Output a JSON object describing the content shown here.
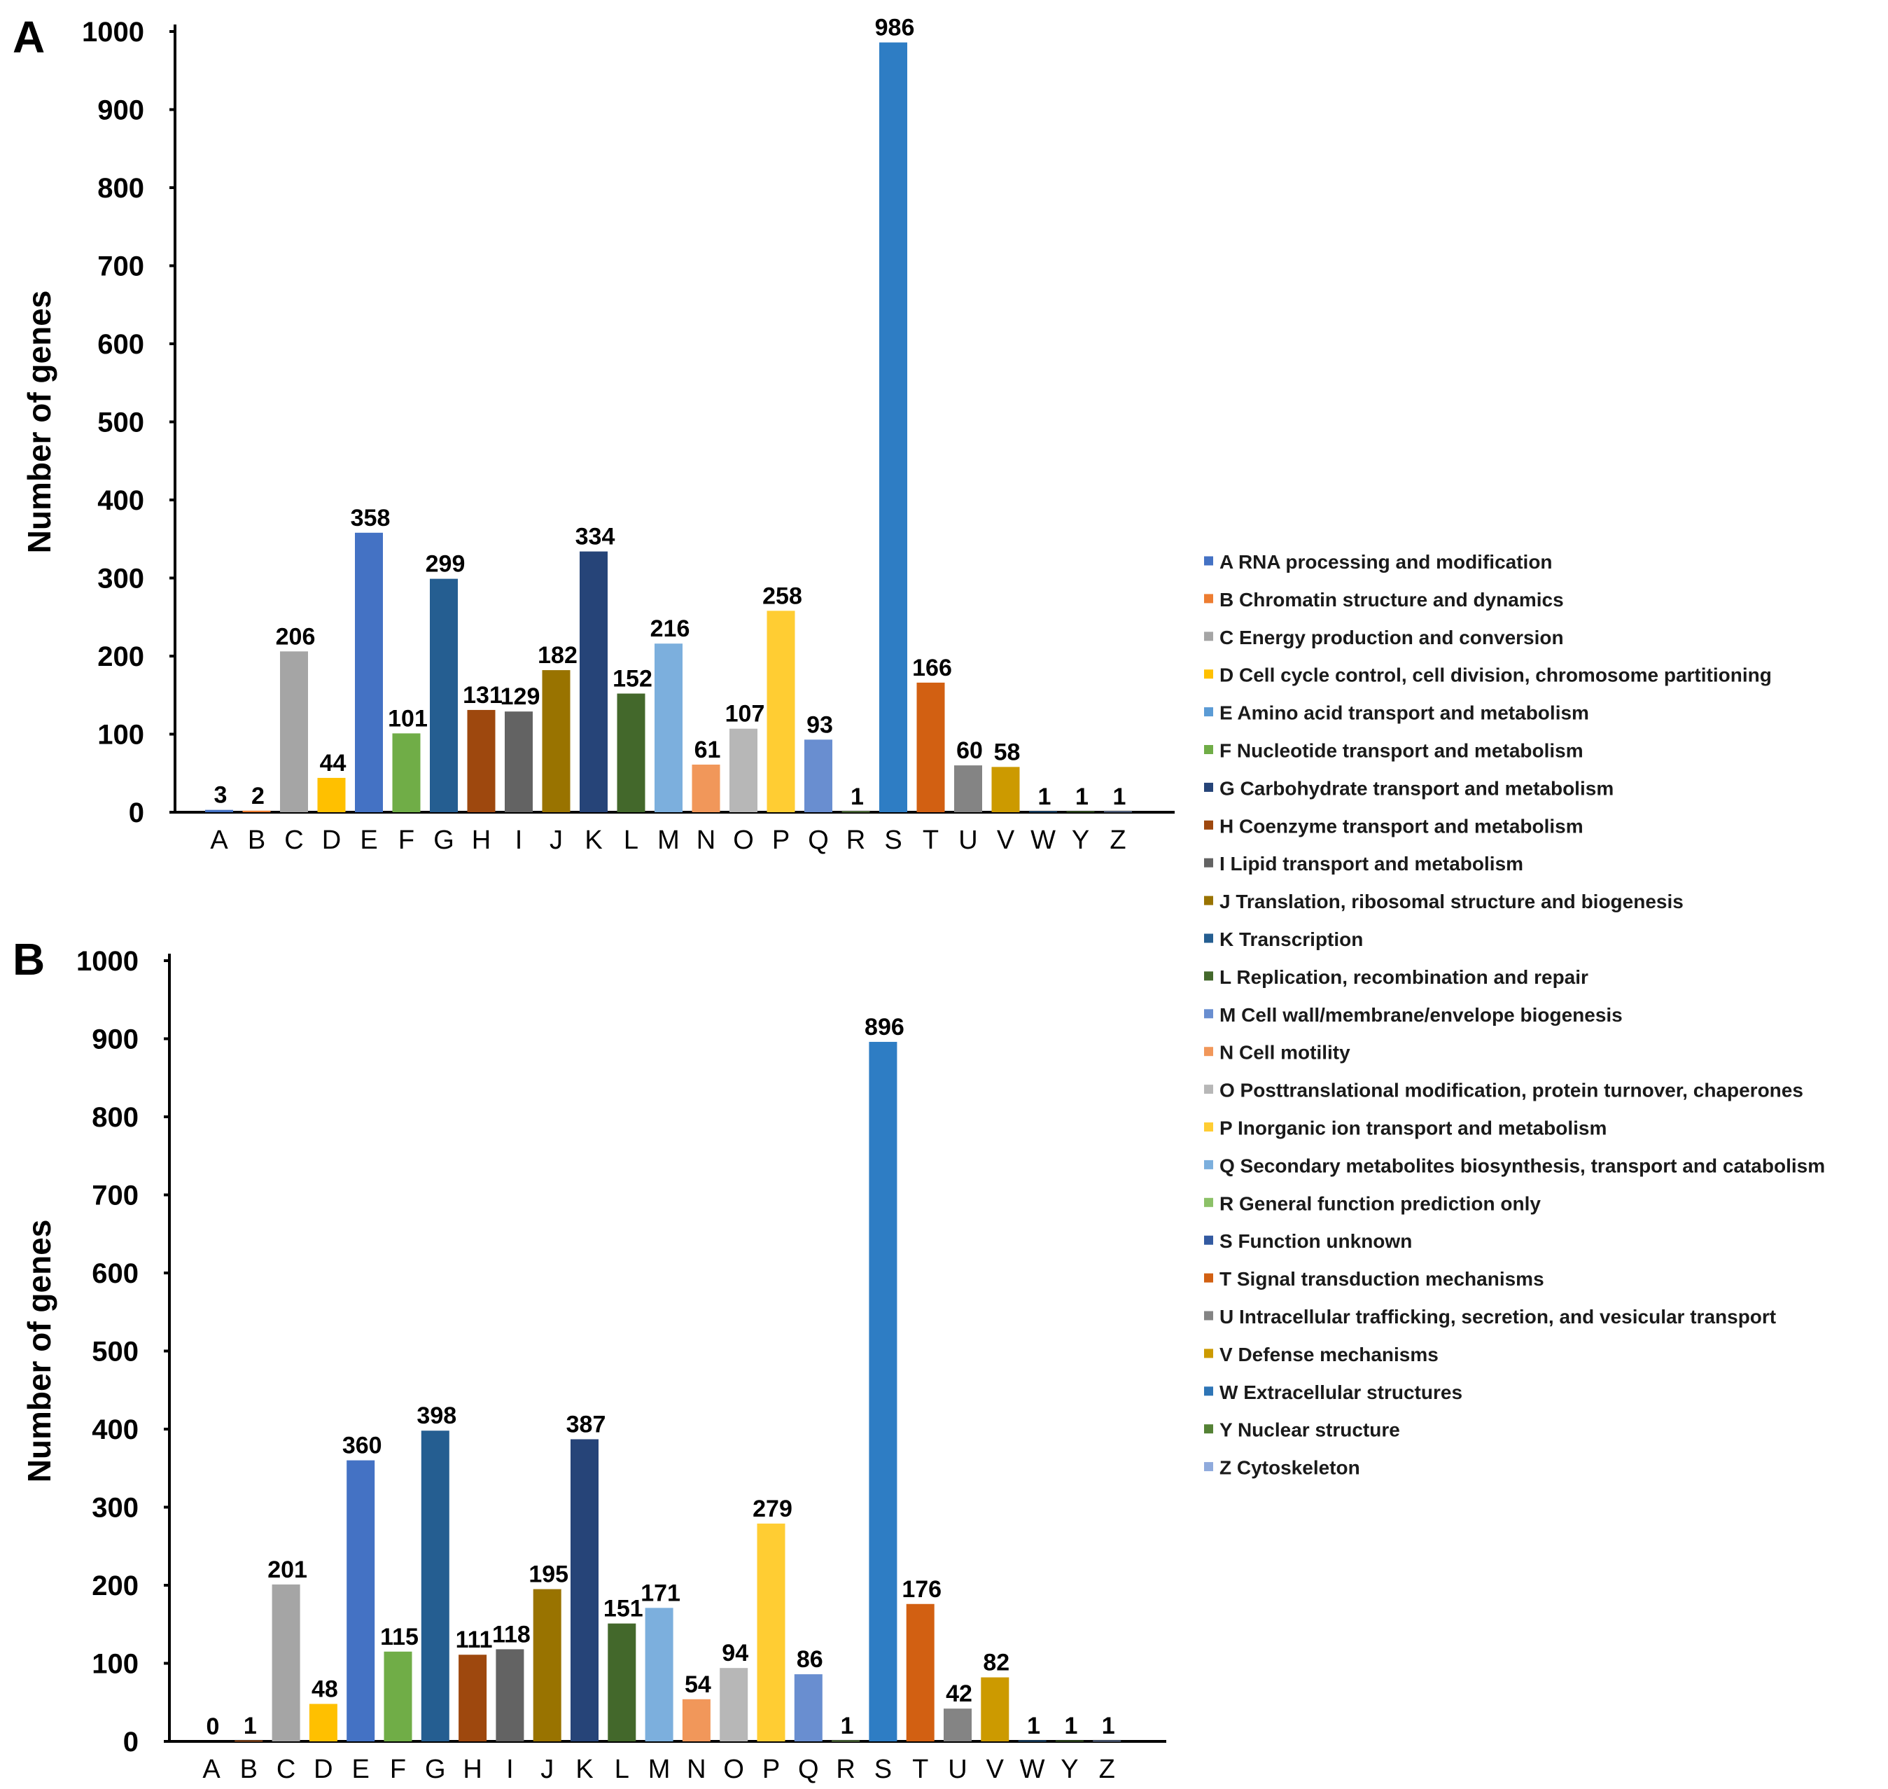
{
  "legend": {
    "items": [
      {
        "code": "A",
        "label": "RNA processing and modification",
        "color": "#4472c4"
      },
      {
        "code": "B",
        "label": "Chromatin structure and dynamics",
        "color": "#ed7d31"
      },
      {
        "code": "C",
        "label": "Energy production and conversion",
        "color": "#a5a5a5"
      },
      {
        "code": "D",
        "label": "Cell cycle control, cell division, chromosome partitioning",
        "color": "#ffc000"
      },
      {
        "code": "E",
        "label": "Amino acid transport and metabolism",
        "color": "#5b9bd5"
      },
      {
        "code": "F",
        "label": "Nucleotide transport and metabolism",
        "color": "#70ad47"
      },
      {
        "code": "G",
        "label": "Carbohydrate transport and metabolism",
        "color": "#264478"
      },
      {
        "code": "H",
        "label": "Coenzyme transport and metabolism",
        "color": "#9e480e"
      },
      {
        "code": "I",
        "label": "Lipid transport and metabolism",
        "color": "#636363"
      },
      {
        "code": "J",
        "label": "Translation, ribosomal structure and biogenesis",
        "color": "#997300"
      },
      {
        "code": "K",
        "label": "Transcription",
        "color": "#255e91"
      },
      {
        "code": "L",
        "label": "Replication, recombination and repair",
        "color": "#43682b"
      },
      {
        "code": "M",
        "label": "Cell wall/membrane/envelope biogenesis",
        "color": "#698ed0"
      },
      {
        "code": "N",
        "label": "Cell motility",
        "color": "#f1975a"
      },
      {
        "code": "O",
        "label": "Posttranslational modification, protein turnover, chaperones",
        "color": "#b7b7b7"
      },
      {
        "code": "P",
        "label": "Inorganic ion transport and metabolism",
        "color": "#ffcd33"
      },
      {
        "code": "Q",
        "label": "Secondary metabolites biosynthesis, transport and catabolism",
        "color": "#7cafdd"
      },
      {
        "code": "R",
        "label": "General function prediction only",
        "color": "#8cc168"
      },
      {
        "code": "S",
        "label": "Function unknown",
        "color": "#335aa1"
      },
      {
        "code": "T",
        "label": "Signal transduction mechanisms",
        "color": "#d26012"
      },
      {
        "code": "U",
        "label": "Intracellular trafficking, secretion, and vesicular transport",
        "color": "#848484"
      },
      {
        "code": "V",
        "label": "Defense mechanisms",
        "color": "#cc9a00"
      },
      {
        "code": "W",
        "label": "Extracellular structures",
        "color": "#2e75b6"
      },
      {
        "code": "Y",
        "label": "Nuclear structure",
        "color": "#548235"
      },
      {
        "code": "Z",
        "label": "Cytoskeleton",
        "color": "#8faadc"
      }
    ]
  },
  "chart_data": [
    {
      "type": "bar",
      "panel": "A",
      "ylabel": "Number of genes",
      "ylim": [
        0,
        1000
      ],
      "yticks": [
        0,
        100,
        200,
        300,
        400,
        500,
        600,
        700,
        800,
        900,
        1000
      ],
      "categories": [
        "A",
        "B",
        "C",
        "D",
        "E",
        "F",
        "G",
        "H",
        "I",
        "J",
        "K",
        "L",
        "M",
        "N",
        "O",
        "P",
        "Q",
        "R",
        "S",
        "T",
        "U",
        "V",
        "W",
        "Y",
        "Z"
      ],
      "values": [
        3,
        2,
        206,
        44,
        358,
        101,
        299,
        131,
        129,
        182,
        334,
        152,
        216,
        61,
        107,
        258,
        93,
        1,
        986,
        166,
        60,
        58,
        1,
        1,
        1
      ],
      "colors": [
        "#4472c4",
        "#ed7d31",
        "#a5a5a5",
        "#ffc000",
        "#4472c4",
        "#70ad47",
        "#255e91",
        "#9e480e",
        "#636363",
        "#997300",
        "#264478",
        "#43682b",
        "#7cafdd",
        "#f1975a",
        "#b7b7b7",
        "#ffcd33",
        "#698ed0",
        "#8cc168",
        "#2e7dc4",
        "#d26012",
        "#848484",
        "#cc9a00",
        "#2e75b6",
        "#548235",
        "#8faadc"
      ],
      "grid": false,
      "legend": "right"
    },
    {
      "type": "bar",
      "panel": "B",
      "ylabel": "Number of genes",
      "ylim": [
        0,
        1000
      ],
      "yticks": [
        0,
        100,
        200,
        300,
        400,
        500,
        600,
        700,
        800,
        900,
        1000
      ],
      "categories": [
        "A",
        "B",
        "C",
        "D",
        "E",
        "F",
        "G",
        "H",
        "I",
        "J",
        "K",
        "L",
        "M",
        "N",
        "O",
        "P",
        "Q",
        "R",
        "S",
        "T",
        "U",
        "V",
        "W",
        "Y",
        "Z"
      ],
      "values": [
        0,
        1,
        201,
        48,
        360,
        115,
        398,
        111,
        118,
        195,
        387,
        151,
        171,
        54,
        94,
        279,
        86,
        1,
        896,
        176,
        42,
        82,
        1,
        1,
        1
      ],
      "colors": [
        "#4472c4",
        "#ed7d31",
        "#a5a5a5",
        "#ffc000",
        "#4472c4",
        "#70ad47",
        "#255e91",
        "#9e480e",
        "#636363",
        "#997300",
        "#264478",
        "#43682b",
        "#7cafdd",
        "#f1975a",
        "#b7b7b7",
        "#ffcd33",
        "#698ed0",
        "#8cc168",
        "#2e7dc4",
        "#d26012",
        "#848484",
        "#cc9a00",
        "#2e75b6",
        "#548235",
        "#8faadc"
      ],
      "grid": false,
      "legend": "right"
    }
  ]
}
